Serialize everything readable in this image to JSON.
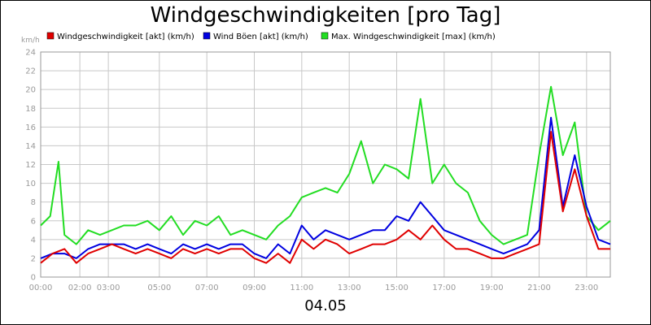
{
  "chart_data": {
    "type": "line",
    "title": "Windgeschwindigkeiten [pro Tag]",
    "ylabel": "km/h",
    "xlabel": "",
    "date_label": "04.05",
    "ylim": [
      0,
      24
    ],
    "y_ticks": [
      0,
      2,
      4,
      6,
      8,
      10,
      12,
      14,
      16,
      18,
      20,
      22,
      24
    ],
    "x_range": [
      "00:00",
      "24:00"
    ],
    "x_tick_labels": [
      {
        "label": "00:00",
        "hour": 0.0
      },
      {
        "label": "02:00",
        "hour": 1.65
      },
      {
        "label": "03:00",
        "hour": 2.85
      },
      {
        "label": "05:00",
        "hour": 5.0
      },
      {
        "label": "07:00",
        "hour": 7.0
      },
      {
        "label": "09:00",
        "hour": 9.0
      },
      {
        "label": "11:00",
        "hour": 11.0
      },
      {
        "label": "13:00",
        "hour": 13.0
      },
      {
        "label": "15:00",
        "hour": 15.0
      },
      {
        "label": "17:00",
        "hour": 17.0
      },
      {
        "label": "19:00",
        "hour": 19.0
      },
      {
        "label": "21:00",
        "hour": 21.0
      },
      {
        "label": "23:00",
        "hour": 23.0
      }
    ],
    "grid": true,
    "legend_position": "top",
    "series": [
      {
        "name": "Windgeschwindigkeit [akt] (km/h)",
        "color": "#e00000",
        "hours": [
          0,
          0.5,
          1,
          1.5,
          2,
          2.5,
          3,
          3.5,
          4,
          4.5,
          5,
          5.5,
          6,
          6.5,
          7,
          7.5,
          8,
          8.5,
          9,
          9.5,
          10,
          10.5,
          11,
          11.5,
          12,
          12.5,
          13,
          13.5,
          14,
          14.5,
          15,
          15.5,
          16,
          16.5,
          17,
          17.5,
          18,
          18.5,
          19,
          19.5,
          20,
          20.5,
          21,
          21.5,
          22,
          22.5,
          23,
          23.5,
          24
        ],
        "values": [
          1.5,
          2.5,
          3.0,
          1.5,
          2.5,
          3.0,
          3.5,
          3.0,
          2.5,
          3.0,
          2.5,
          2.0,
          3.0,
          2.5,
          3.0,
          2.5,
          3.0,
          3.0,
          2.0,
          1.5,
          2.5,
          1.5,
          4.0,
          3.0,
          4.0,
          3.5,
          2.5,
          3.0,
          3.5,
          3.5,
          4.0,
          5.0,
          4.0,
          5.5,
          4.0,
          3.0,
          3.0,
          2.5,
          2.0,
          2.0,
          2.5,
          3.0,
          3.5,
          15.5,
          7.0,
          11.5,
          6.5,
          3.0,
          3.0
        ]
      },
      {
        "name": "Wind Böen [akt] (km/h)",
        "color": "#0000e0",
        "hours": [
          0,
          0.5,
          1,
          1.5,
          2,
          2.5,
          3,
          3.5,
          4,
          4.5,
          5,
          5.5,
          6,
          6.5,
          7,
          7.5,
          8,
          8.5,
          9,
          9.5,
          10,
          10.5,
          11,
          11.5,
          12,
          12.5,
          13,
          13.5,
          14,
          14.5,
          15,
          15.5,
          16,
          16.5,
          17,
          17.5,
          18,
          18.5,
          19,
          19.5,
          20,
          20.5,
          21,
          21.5,
          22,
          22.5,
          23,
          23.5,
          24
        ],
        "values": [
          2.0,
          2.5,
          2.5,
          2.0,
          3.0,
          3.5,
          3.5,
          3.5,
          3.0,
          3.5,
          3.0,
          2.5,
          3.5,
          3.0,
          3.5,
          3.0,
          3.5,
          3.5,
          2.5,
          2.0,
          3.5,
          2.5,
          5.5,
          4.0,
          5.0,
          4.5,
          4.0,
          4.5,
          5.0,
          5.0,
          6.5,
          6.0,
          8.0,
          6.5,
          5.0,
          4.5,
          4.0,
          3.5,
          3.0,
          2.5,
          3.0,
          3.5,
          5.0,
          17.0,
          7.5,
          13.0,
          7.5,
          4.0,
          3.5
        ]
      },
      {
        "name": "Max. Windgeschwindigkeit [max] (km/h)",
        "color": "#22dd22",
        "hours": [
          0,
          0.4,
          0.75,
          1,
          1.5,
          2,
          2.5,
          3,
          3.5,
          4,
          4.5,
          5,
          5.5,
          6,
          6.5,
          7,
          7.5,
          8,
          8.5,
          9,
          9.5,
          10,
          10.5,
          11,
          11.5,
          12,
          12.5,
          13,
          13.5,
          14,
          14.5,
          15,
          15.5,
          16,
          16.5,
          17,
          17.5,
          18,
          18.5,
          19,
          19.5,
          20,
          20.5,
          21,
          21.5,
          22,
          22.5,
          23,
          23.5,
          24
        ],
        "values": [
          5.5,
          6.5,
          12.3,
          4.5,
          3.5,
          5.0,
          4.5,
          5.0,
          5.5,
          5.5,
          6.0,
          5.0,
          6.5,
          4.5,
          6.0,
          5.5,
          6.5,
          4.5,
          5.0,
          4.5,
          4.0,
          5.5,
          6.5,
          8.5,
          9.0,
          9.5,
          9.0,
          11.0,
          14.5,
          10.0,
          12.0,
          11.5,
          10.5,
          19.0,
          10.0,
          12.0,
          10.0,
          9.0,
          6.0,
          4.5,
          3.5,
          4.0,
          4.5,
          13.0,
          20.3,
          13.0,
          16.5,
          6.5,
          5.0,
          6.0
        ]
      }
    ]
  }
}
